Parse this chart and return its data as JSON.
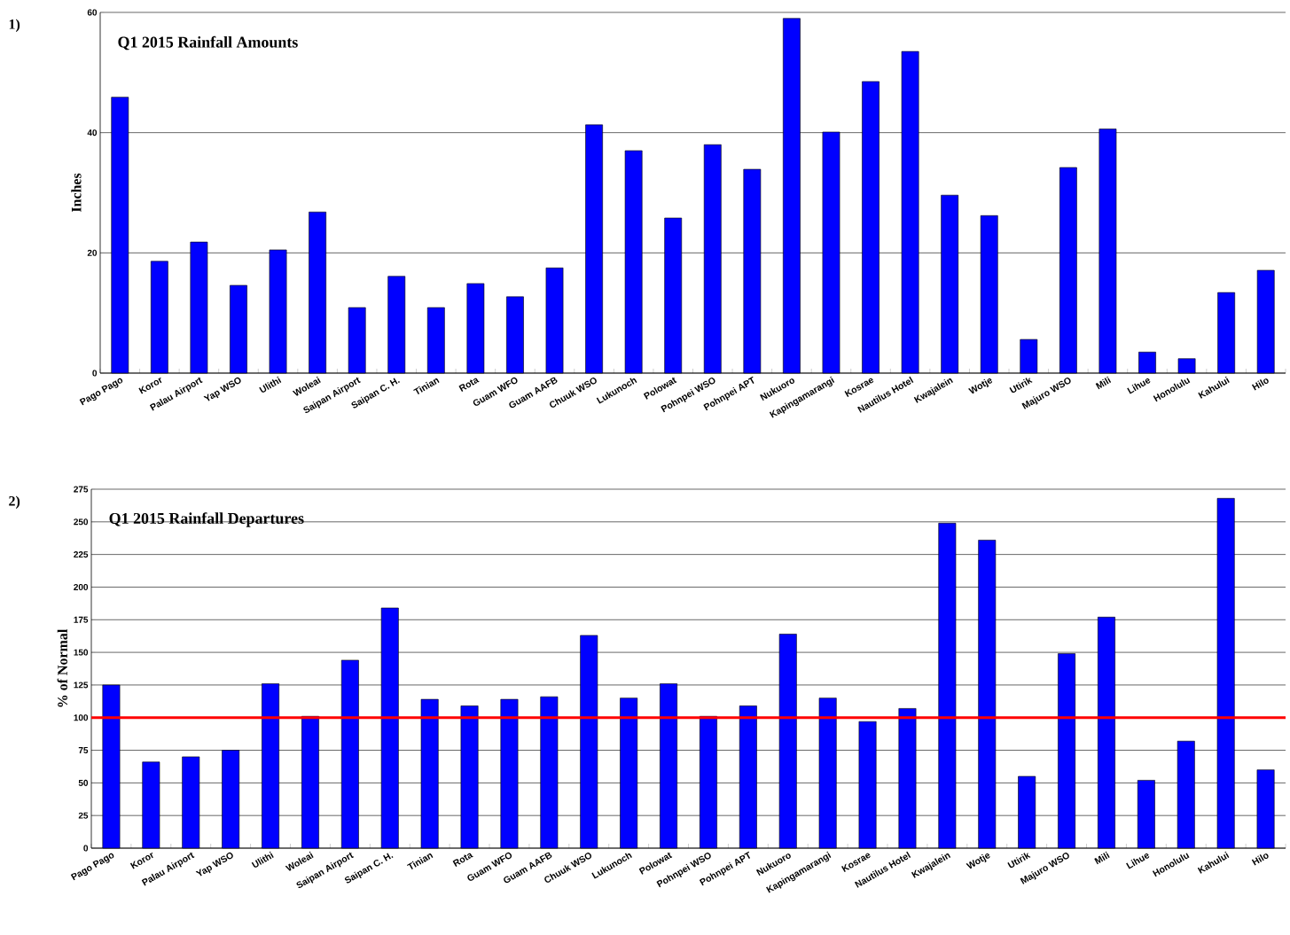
{
  "chart_data": [
    {
      "type": "bar",
      "title": "Q1 2015 Rainfall Amounts",
      "ylabel": "Inches",
      "annotations": [
        "1)"
      ],
      "categories": [
        "Pago Pago",
        "Koror",
        "Palau Airport",
        "Yap WSO",
        "Ulithi",
        "Woleai",
        "Saipan Airport",
        "Saipan C. H.",
        "Tinian",
        "Rota",
        "Guam WFO",
        "Guam AAFB",
        "Chuuk WSO",
        "Lukunoch",
        "Polowat",
        "Pohnpei WSO",
        "Pohnpei APT",
        "Nukuoro",
        "Kapingamarangi",
        "Kosrae",
        "Nautilus Hotel",
        "Kwajalein",
        "Wotje",
        "Utirik",
        "Majuro WSO",
        "Mili",
        "Lihue",
        "Honolulu",
        "Kahului",
        "Hilo"
      ],
      "values": [
        45.9,
        18.6,
        21.8,
        14.6,
        20.5,
        26.8,
        10.9,
        16.1,
        10.9,
        14.9,
        12.7,
        17.5,
        41.3,
        37.0,
        25.8,
        38.0,
        33.9,
        59.0,
        40.1,
        48.5,
        53.5,
        29.6,
        26.2,
        5.6,
        34.2,
        40.6,
        3.5,
        2.4,
        13.4,
        17.1
      ],
      "color": "#0000ff",
      "ylim": [
        0,
        60
      ],
      "yticks": [
        0,
        20,
        40,
        60
      ],
      "grid": "y"
    },
    {
      "type": "bar",
      "title": "Q1 2015 Rainfall Departures",
      "ylabel": "% of Normal",
      "annotations": [
        "2)"
      ],
      "categories": [
        "Pago Pago",
        "Koror",
        "Palau Airport",
        "Yap WSO",
        "Ulithi",
        "Woleai",
        "Saipan Airport",
        "Saipan C. H.",
        "Tinian",
        "Rota",
        "Guam WFO",
        "Guam AAFB",
        "Chuuk WSO",
        "Lukunoch",
        "Polowat",
        "Pohnpei WSO",
        "Pohnpei APT",
        "Nukuoro",
        "Kapingamarangi",
        "Kosrae",
        "Nautilus Hotel",
        "Kwajalein",
        "Wotje",
        "Utirik",
        "Majuro WSO",
        "Mili",
        "Lihue",
        "Honolulu",
        "Kahului",
        "Hilo"
      ],
      "values": [
        125,
        66,
        70,
        75,
        126,
        101,
        144,
        184,
        114,
        109,
        114,
        116,
        163,
        115,
        126,
        101,
        109,
        164,
        115,
        97,
        107,
        249,
        236,
        55,
        149,
        177,
        52,
        82,
        268,
        60
      ],
      "color": "#0000ff",
      "ylim": [
        0,
        275
      ],
      "yticks": [
        0,
        25,
        50,
        75,
        100,
        125,
        150,
        175,
        200,
        225,
        250,
        275
      ],
      "grid": "y",
      "ref_lines": [
        {
          "axis": "y",
          "value": 100,
          "color": "#ff0000"
        }
      ]
    }
  ]
}
